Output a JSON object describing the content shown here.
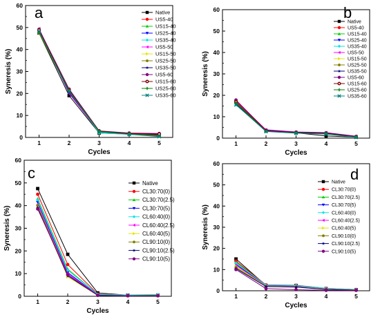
{
  "chart_data": [
    {
      "type": "line",
      "panel_label": "a",
      "xlabel": "Cycles",
      "ylabel": "Syneresis (%)",
      "x": [
        1,
        2,
        3,
        4,
        5
      ],
      "xlim": [
        0.55,
        5.45
      ],
      "ylim": [
        0,
        60
      ],
      "yticks": [
        0,
        10,
        20,
        30,
        40,
        50,
        60
      ],
      "grid": false,
      "legend_position": "top-right",
      "series": [
        {
          "name": "Native",
          "values": [
            47.5,
            19.0,
            2.0,
            1.5,
            1.0
          ],
          "color": "#000000",
          "marker": "square"
        },
        {
          "name": "US5-40",
          "values": [
            49.0,
            21.0,
            2.5,
            1.8,
            1.2
          ],
          "color": "#ff0000",
          "marker": "circle"
        },
        {
          "name": "US15-40",
          "values": [
            48.5,
            21.5,
            2.2,
            1.5,
            1.0
          ],
          "color": "#00cc00",
          "marker": "triangle-up"
        },
        {
          "name": "US25-40",
          "values": [
            48.0,
            20.5,
            2.3,
            1.6,
            0.8
          ],
          "color": "#0000ff",
          "marker": "triangle-down"
        },
        {
          "name": "US35-40",
          "values": [
            47.8,
            21.0,
            2.0,
            1.4,
            0.5
          ],
          "color": "#00e5e5",
          "marker": "diamond"
        },
        {
          "name": "US5-50",
          "values": [
            49.5,
            20.0,
            2.5,
            1.8,
            1.5
          ],
          "color": "#ff00ff",
          "marker": "triangle-left"
        },
        {
          "name": "US15-50",
          "values": [
            48.2,
            21.0,
            2.4,
            1.6,
            1.0
          ],
          "color": "#e5e500",
          "marker": "triangle-right"
        },
        {
          "name": "US25-50",
          "values": [
            47.5,
            20.8,
            2.6,
            1.7,
            0.9
          ],
          "color": "#808000",
          "marker": "hexagon"
        },
        {
          "name": "US35-50",
          "values": [
            48.6,
            20.5,
            2.8,
            1.9,
            1.2
          ],
          "color": "#000080",
          "marker": "star"
        },
        {
          "name": "US5-60",
          "values": [
            49.2,
            22.0,
            3.0,
            2.0,
            1.8
          ],
          "color": "#800080",
          "marker": "circle"
        },
        {
          "name": "US15-60",
          "values": [
            48.8,
            21.5,
            2.9,
            1.8,
            1.5
          ],
          "color": "#800000",
          "marker": "circle-dot"
        },
        {
          "name": "US25-60",
          "values": [
            47.9,
            21.2,
            2.7,
            1.5,
            0.6
          ],
          "color": "#008000",
          "marker": "plus"
        },
        {
          "name": "US35-60",
          "values": [
            48.3,
            20.8,
            2.5,
            1.4,
            0.4
          ],
          "color": "#008080",
          "marker": "x"
        }
      ]
    },
    {
      "type": "line",
      "panel_label": "b",
      "xlabel": "Cycles",
      "ylabel": "Syneresis (%)",
      "x": [
        1,
        2,
        3,
        4,
        5
      ],
      "xlim": [
        0.55,
        5.45
      ],
      "ylim": [
        0,
        60
      ],
      "yticks": [
        0,
        10,
        20,
        30,
        40,
        50,
        60
      ],
      "grid": false,
      "legend_position": "top-right",
      "series": [
        {
          "name": "Native",
          "values": [
            17.0,
            3.5,
            2.5,
            1.0,
            0.5
          ],
          "color": "#000000",
          "marker": "square"
        },
        {
          "name": "US5-40",
          "values": [
            17.5,
            3.8,
            2.8,
            2.5,
            0.8
          ],
          "color": "#ff0000",
          "marker": "circle"
        },
        {
          "name": "US15-40",
          "values": [
            16.5,
            3.2,
            2.6,
            2.2,
            0.6
          ],
          "color": "#00cc00",
          "marker": "triangle-up"
        },
        {
          "name": "US25-40",
          "values": [
            16.0,
            3.6,
            2.7,
            2.4,
            0.7
          ],
          "color": "#0000ff",
          "marker": "triangle-down"
        },
        {
          "name": "US35-40",
          "values": [
            15.5,
            3.4,
            2.5,
            2.3,
            0.5
          ],
          "color": "#00e5e5",
          "marker": "diamond"
        },
        {
          "name": "US5-50",
          "values": [
            17.2,
            3.9,
            2.9,
            2.6,
            0.9
          ],
          "color": "#ff00ff",
          "marker": "triangle-left"
        },
        {
          "name": "US15-50",
          "values": [
            16.8,
            3.5,
            2.6,
            2.3,
            0.6
          ],
          "color": "#e5e500",
          "marker": "triangle-right"
        },
        {
          "name": "US25-50",
          "values": [
            16.2,
            3.3,
            2.5,
            2.1,
            0.5
          ],
          "color": "#808000",
          "marker": "hexagon"
        },
        {
          "name": "US35-50",
          "values": [
            15.8,
            3.7,
            2.8,
            2.5,
            0.8
          ],
          "color": "#000080",
          "marker": "star"
        },
        {
          "name": "US5-60",
          "values": [
            17.8,
            3.6,
            2.7,
            2.4,
            0.7
          ],
          "color": "#800080",
          "marker": "circle"
        },
        {
          "name": "US15-60",
          "values": [
            17.0,
            3.4,
            2.6,
            2.2,
            0.6
          ],
          "color": "#800000",
          "marker": "circle-dot"
        },
        {
          "name": "US25-60",
          "values": [
            16.4,
            3.2,
            2.4,
            2.0,
            0.5
          ],
          "color": "#008000",
          "marker": "plus"
        },
        {
          "name": "US35-60",
          "values": [
            15.6,
            3.1,
            2.3,
            1.9,
            0.4
          ],
          "color": "#008080",
          "marker": "x"
        }
      ]
    },
    {
      "type": "line",
      "panel_label": "c",
      "xlabel": "Cycles",
      "ylabel": "Syneresis (%)",
      "x": [
        1,
        2,
        3,
        4,
        5
      ],
      "xlim": [
        0.55,
        5.45
      ],
      "ylim": [
        0,
        60
      ],
      "yticks": [
        0,
        10,
        20,
        30,
        40,
        50,
        60
      ],
      "grid": false,
      "legend_position": "top-right",
      "series": [
        {
          "name": "Native",
          "values": [
            47.5,
            18.5,
            1.5,
            0.5,
            0.5
          ],
          "color": "#000000",
          "marker": "square"
        },
        {
          "name": "CL30:70(0)",
          "values": [
            45.0,
            14.0,
            1.0,
            0.5,
            0.5
          ],
          "color": "#ff0000",
          "marker": "circle"
        },
        {
          "name": "CL30:70(2.5)",
          "values": [
            43.0,
            12.0,
            0.8,
            0.4,
            0.4
          ],
          "color": "#00cc00",
          "marker": "triangle-up"
        },
        {
          "name": "CL30:70(5)",
          "values": [
            41.5,
            10.5,
            0.6,
            0.3,
            0.3
          ],
          "color": "#0000ff",
          "marker": "triangle-down"
        },
        {
          "name": "CL60:40(0)",
          "values": [
            42.5,
            11.5,
            0.9,
            0.6,
            0.8
          ],
          "color": "#00e5e5",
          "marker": "diamond"
        },
        {
          "name": "CL60:40(2.5)",
          "values": [
            40.5,
            10.0,
            0.5,
            0.3,
            0.3
          ],
          "color": "#ff00ff",
          "marker": "triangle-left"
        },
        {
          "name": "CL60:40(5)",
          "values": [
            39.5,
            8.5,
            0.4,
            0.2,
            0.2
          ],
          "color": "#e5e500",
          "marker": "triangle-right"
        },
        {
          "name": "CL90:10(0)",
          "values": [
            40.0,
            9.5,
            0.5,
            0.3,
            0.3
          ],
          "color": "#808000",
          "marker": "hexagon"
        },
        {
          "name": "CL90:10(2.5)",
          "values": [
            39.0,
            9.0,
            0.4,
            0.2,
            0.2
          ],
          "color": "#000080",
          "marker": "star"
        },
        {
          "name": "CL90:10(5)",
          "values": [
            38.5,
            9.5,
            0.4,
            0.2,
            0.2
          ],
          "color": "#800080",
          "marker": "circle"
        }
      ]
    },
    {
      "type": "line",
      "panel_label": "d",
      "xlabel": "Cycles",
      "ylabel": "Syneresis (%)",
      "x": [
        1,
        2,
        3,
        4,
        5
      ],
      "xlim": [
        0.55,
        5.45
      ],
      "ylim": [
        0,
        60
      ],
      "yticks": [
        0,
        10,
        20,
        30,
        40,
        50,
        60
      ],
      "grid": false,
      "legend_position": "top-right",
      "series": [
        {
          "name": "Native",
          "values": [
            15.0,
            2.5,
            2.5,
            1.0,
            0.5
          ],
          "color": "#000000",
          "marker": "square"
        },
        {
          "name": "CL30:70(0)",
          "values": [
            14.0,
            2.8,
            2.6,
            1.2,
            0.6
          ],
          "color": "#ff0000",
          "marker": "circle"
        },
        {
          "name": "CL30:70(2.5)",
          "values": [
            13.5,
            2.6,
            2.4,
            1.1,
            0.5
          ],
          "color": "#00cc00",
          "marker": "triangle-up"
        },
        {
          "name": "CL30:70(5)",
          "values": [
            12.5,
            2.4,
            2.2,
            1.0,
            0.5
          ],
          "color": "#0000ff",
          "marker": "triangle-down"
        },
        {
          "name": "CL60:40(0)",
          "values": [
            13.0,
            2.7,
            2.5,
            1.2,
            0.6
          ],
          "color": "#00e5e5",
          "marker": "diamond"
        },
        {
          "name": "CL60:40(2.5)",
          "values": [
            12.0,
            2.3,
            2.0,
            0.9,
            0.4
          ],
          "color": "#ff00ff",
          "marker": "triangle-left"
        },
        {
          "name": "CL60:40(5)",
          "values": [
            11.5,
            2.2,
            1.9,
            0.8,
            0.4
          ],
          "color": "#e5e500",
          "marker": "triangle-right"
        },
        {
          "name": "CL90:10(0)",
          "values": [
            11.0,
            2.1,
            1.8,
            0.7,
            0.3
          ],
          "color": "#808000",
          "marker": "hexagon"
        },
        {
          "name": "CL90:10(2.5)",
          "values": [
            10.5,
            2.0,
            1.7,
            0.6,
            0.3
          ],
          "color": "#000080",
          "marker": "star"
        },
        {
          "name": "CL90:10(5)",
          "values": [
            10.0,
            1.0,
            0.5,
            0.2,
            0.2
          ],
          "color": "#800080",
          "marker": "circle"
        }
      ]
    }
  ]
}
